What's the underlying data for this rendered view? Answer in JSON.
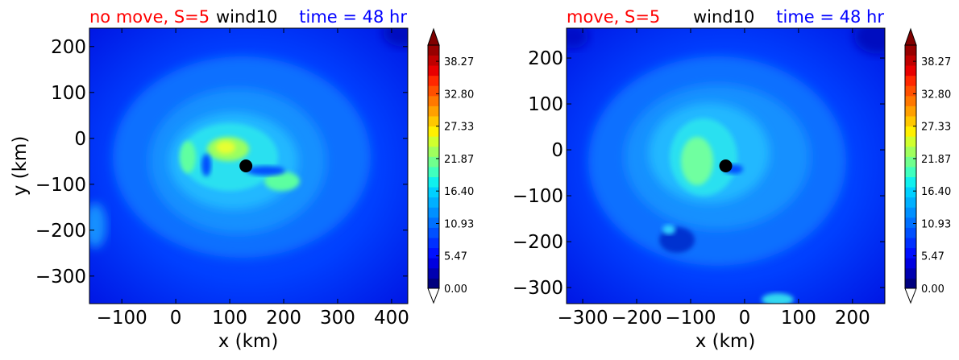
{
  "panels": [
    {
      "title_left": "no move, S=5",
      "title_mid": "wind10",
      "title_right": "time = 48 hr",
      "xlabel": "x (km)",
      "ylabel": "y (km)",
      "xlim": [
        -160,
        430
      ],
      "ylim": [
        -360,
        240
      ],
      "xticks": [
        {
          "v": -100,
          "t": "−100"
        },
        {
          "v": 0,
          "t": "0"
        },
        {
          "v": 100,
          "t": "100"
        },
        {
          "v": 200,
          "t": "200"
        },
        {
          "v": 300,
          "t": "300"
        },
        {
          "v": 400,
          "t": "400"
        }
      ],
      "yticks": [
        {
          "v": -300,
          "t": "−300"
        },
        {
          "v": -200,
          "t": "−200"
        },
        {
          "v": -100,
          "t": "−100"
        },
        {
          "v": 0,
          "t": "0"
        },
        {
          "v": 100,
          "t": "100"
        },
        {
          "v": 200,
          "t": "200"
        }
      ],
      "center": [
        130,
        -60
      ]
    },
    {
      "title_left": "move, S=5",
      "title_mid": "wind10",
      "title_right": "time = 48 hr",
      "xlabel": "x (km)",
      "ylabel": "",
      "xlim": [
        -330,
        260
      ],
      "ylim": [
        -335,
        265
      ],
      "xticks": [
        {
          "v": -300,
          "t": "−300"
        },
        {
          "v": -200,
          "t": "−200"
        },
        {
          "v": -100,
          "t": "−100"
        },
        {
          "v": 0,
          "t": "0"
        },
        {
          "v": 100,
          "t": "100"
        },
        {
          "v": 200,
          "t": "200"
        }
      ],
      "yticks": [
        {
          "v": -300,
          "t": "−300"
        },
        {
          "v": -200,
          "t": "−200"
        },
        {
          "v": -100,
          "t": "−100"
        },
        {
          "v": 0,
          "t": "0"
        },
        {
          "v": 100,
          "t": "100"
        },
        {
          "v": 200,
          "t": "200"
        }
      ],
      "center": [
        -35,
        -35
      ]
    }
  ],
  "colorbar": {
    "ticks": [
      "0.00",
      "5.47",
      "10.93",
      "16.40",
      "21.87",
      "27.33",
      "32.80",
      "38.27"
    ],
    "range": [
      0,
      41
    ]
  },
  "colors": {
    "title_left": "#ff0000",
    "title_mid": "#000000",
    "title_right": "#0000ff"
  },
  "chart_data": [
    {
      "type": "heatmap",
      "title": "no move, S=5 wind10 time = 48 hr",
      "xlabel": "x (km)",
      "ylabel": "y (km)",
      "xlim": [
        -160,
        430
      ],
      "ylim": [
        -360,
        240
      ],
      "variable": "wind10",
      "storm_center": [
        130,
        -60
      ],
      "value_range": [
        0,
        41
      ],
      "colorbar_ticks": [
        0.0,
        5.47,
        10.93,
        16.4,
        21.87,
        27.33,
        32.8,
        38.27
      ],
      "features": [
        {
          "region": "eyewall max NW of center",
          "x": 105,
          "y": -20,
          "value": 24
        },
        {
          "region": "secondary max SE",
          "x": 195,
          "y": -95,
          "value": 20
        },
        {
          "region": "background far field",
          "value": 4
        }
      ]
    },
    {
      "type": "heatmap",
      "title": "move, S=5 wind10 time = 48 hr",
      "xlabel": "x (km)",
      "ylabel": "",
      "xlim": [
        -330,
        260
      ],
      "ylim": [
        -335,
        265
      ],
      "variable": "wind10",
      "storm_center": [
        -35,
        -35
      ],
      "value_range": [
        0,
        41
      ],
      "colorbar_ticks": [
        0.0,
        5.47,
        10.93,
        16.4,
        21.87,
        27.33,
        32.8,
        38.27
      ],
      "features": [
        {
          "region": "eyewall max W of center",
          "x": -70,
          "y": -40,
          "value": 20
        },
        {
          "region": "localized max south edge",
          "x": 65,
          "y": -330,
          "value": 14
        },
        {
          "region": "background far field",
          "value": 4
        }
      ]
    }
  ]
}
